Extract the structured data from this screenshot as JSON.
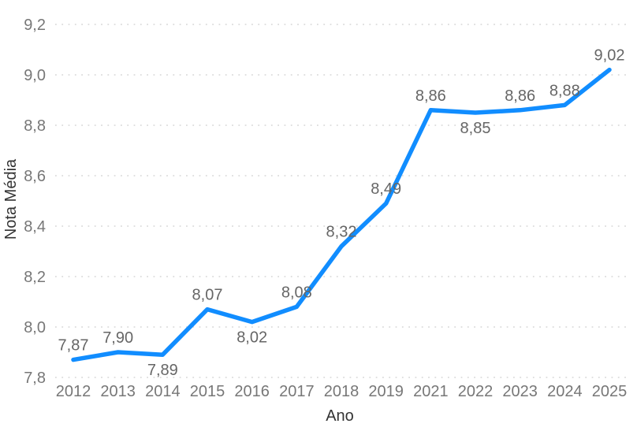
{
  "chart_data": {
    "type": "line",
    "title": "",
    "xlabel": "Ano",
    "ylabel": "Nota Média",
    "categories": [
      "2012",
      "2013",
      "2014",
      "2015",
      "2016",
      "2017",
      "2018",
      "2019",
      "2021",
      "2022",
      "2023",
      "2024",
      "2025"
    ],
    "values": [
      7.87,
      7.9,
      7.89,
      8.07,
      8.02,
      8.08,
      8.32,
      8.49,
      8.86,
      8.85,
      8.86,
      8.88,
      9.02
    ],
    "data_labels": [
      "7,87",
      "7,90",
      "7,89",
      "8,07",
      "8,02",
      "8,08",
      "8,32",
      "8,49",
      "8,86",
      "8,85",
      "8,86",
      "8,88",
      "9,02"
    ],
    "label_positions": [
      "above",
      "above",
      "below",
      "above",
      "below",
      "above",
      "above",
      "above",
      "above",
      "below",
      "above",
      "above",
      "above"
    ],
    "ylim": [
      7.8,
      9.2
    ],
    "ytick_step": 0.2,
    "ytick_labels": [
      "7,8",
      "8,0",
      "8,2",
      "8,4",
      "8,6",
      "8,8",
      "9,0",
      "9,2"
    ],
    "grid": "horizontal-dotted",
    "legend": "none",
    "colors": {
      "line": "#118DFF",
      "gridline": "#D6D6D6",
      "tick_label": "#777777",
      "data_label": "#666666",
      "axis_title": "#333333",
      "background": "#FFFFFF"
    }
  }
}
